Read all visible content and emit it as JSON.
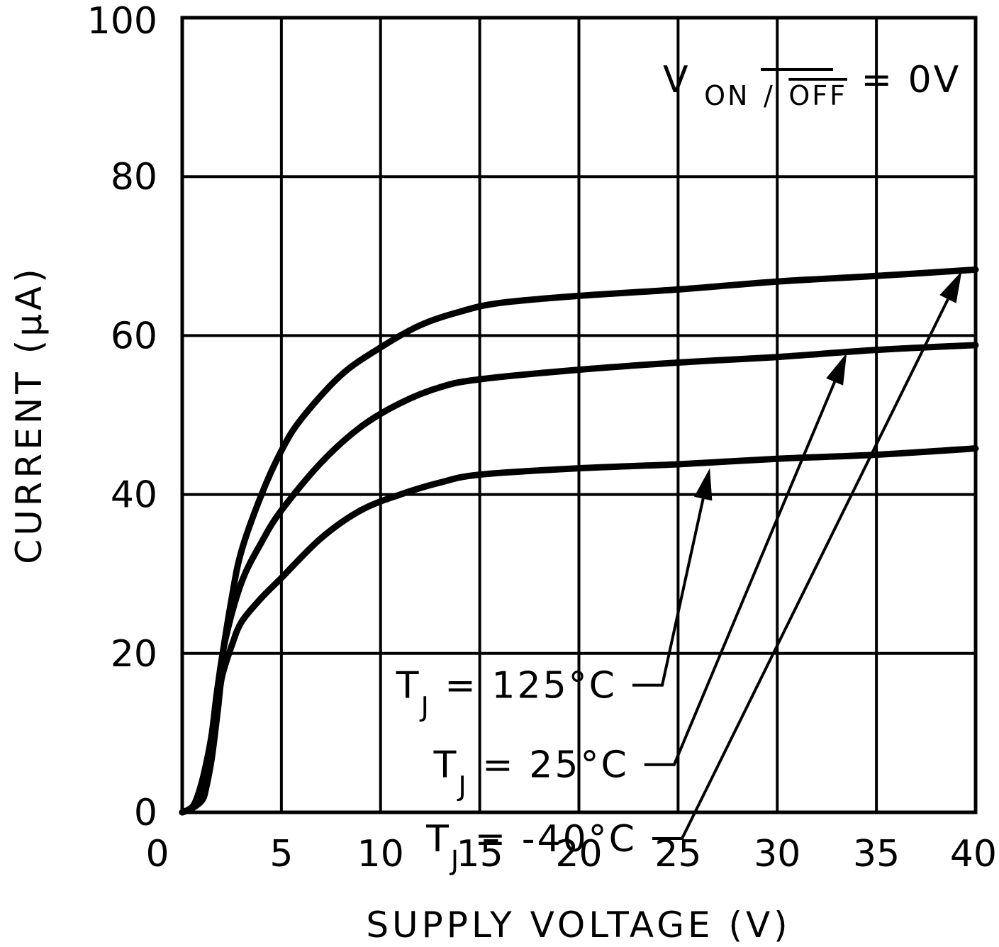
{
  "chart_data": {
    "type": "line",
    "title": "",
    "xlabel": "SUPPLY VOLTAGE (V)",
    "ylabel": "CURRENT (μA)",
    "xlim": [
      0,
      40
    ],
    "ylim": [
      0,
      100
    ],
    "xticks": [
      0,
      5,
      10,
      15,
      20,
      25,
      30,
      35,
      40
    ],
    "xtick_labels": [
      "0",
      "5",
      "10",
      "15",
      "20",
      "25",
      "30",
      "35",
      "40"
    ],
    "yticks": [
      0,
      20,
      40,
      60,
      80,
      100
    ],
    "ytick_labels": [
      "0",
      "20",
      "40",
      "60",
      "80",
      "100"
    ],
    "grid": true,
    "condition": {
      "prefix": "V",
      "subscript_plain": "ON",
      "subscript_slash": "/",
      "subscript_overlined": "OFF",
      "suffix": " = 0V"
    },
    "series": [
      {
        "name": "TJ = 125°C",
        "label_main": "T",
        "label_sub": "J",
        "label_rest": " = 125°C",
        "x": [
          0,
          0.5,
          1,
          1.2,
          1.5,
          1.8,
          2,
          2.5,
          3,
          4,
          5,
          7,
          9,
          11,
          13,
          15,
          20,
          25,
          30,
          35,
          40
        ],
        "y": [
          0,
          0.5,
          1.5,
          3,
          7,
          13,
          17,
          21,
          24,
          27,
          29.5,
          34.5,
          38,
          40,
          41.5,
          42.5,
          43.3,
          43.8,
          44.5,
          45,
          45.8
        ]
      },
      {
        "name": "TJ = 25°C",
        "label_main": "T",
        "label_sub": "J",
        "label_rest": " = 25°C",
        "x": [
          0,
          0.3,
          0.6,
          0.9,
          1.2,
          1.5,
          1.8,
          2.2,
          3,
          4,
          5,
          7,
          9,
          11,
          13,
          15,
          20,
          25,
          30,
          35,
          40
        ],
        "y": [
          0,
          0.3,
          1,
          3,
          6,
          10,
          16,
          22,
          29,
          34,
          38,
          44,
          48.5,
          51.5,
          53.5,
          54.5,
          55.7,
          56.6,
          57.3,
          58.2,
          58.8
        ]
      },
      {
        "name": "TJ = -40°C",
        "label_main": "T",
        "label_sub": "J",
        "label_rest": " = -40°C",
        "x": [
          0,
          0.3,
          0.6,
          0.9,
          1.2,
          1.5,
          1.8,
          2.5,
          3,
          4,
          5,
          6,
          8,
          10,
          12,
          14,
          16,
          20,
          25,
          30,
          35,
          40
        ],
        "y": [
          0,
          0.3,
          1,
          3,
          6,
          10,
          16,
          27,
          33,
          40,
          45.5,
          49.5,
          55,
          58.5,
          61.3,
          63,
          64.1,
          65,
          65.8,
          66.8,
          67.5,
          68.3
        ]
      }
    ],
    "annotations": [
      {
        "series": 0,
        "label_at": [
          24.2,
          16
        ],
        "elbow": [
          24.2,
          16
        ],
        "arrow_to": [
          26.6,
          43.3
        ]
      },
      {
        "series": 1,
        "label_at": [
          24.8,
          6
        ],
        "elbow": [
          24.8,
          6
        ],
        "arrow_to": [
          33.5,
          57.8
        ]
      },
      {
        "series": 2,
        "label_at": [
          25.2,
          -3.3
        ],
        "elbow": [
          25.2,
          -3.3
        ],
        "arrow_to": [
          39.3,
          68.1
        ]
      }
    ]
  }
}
